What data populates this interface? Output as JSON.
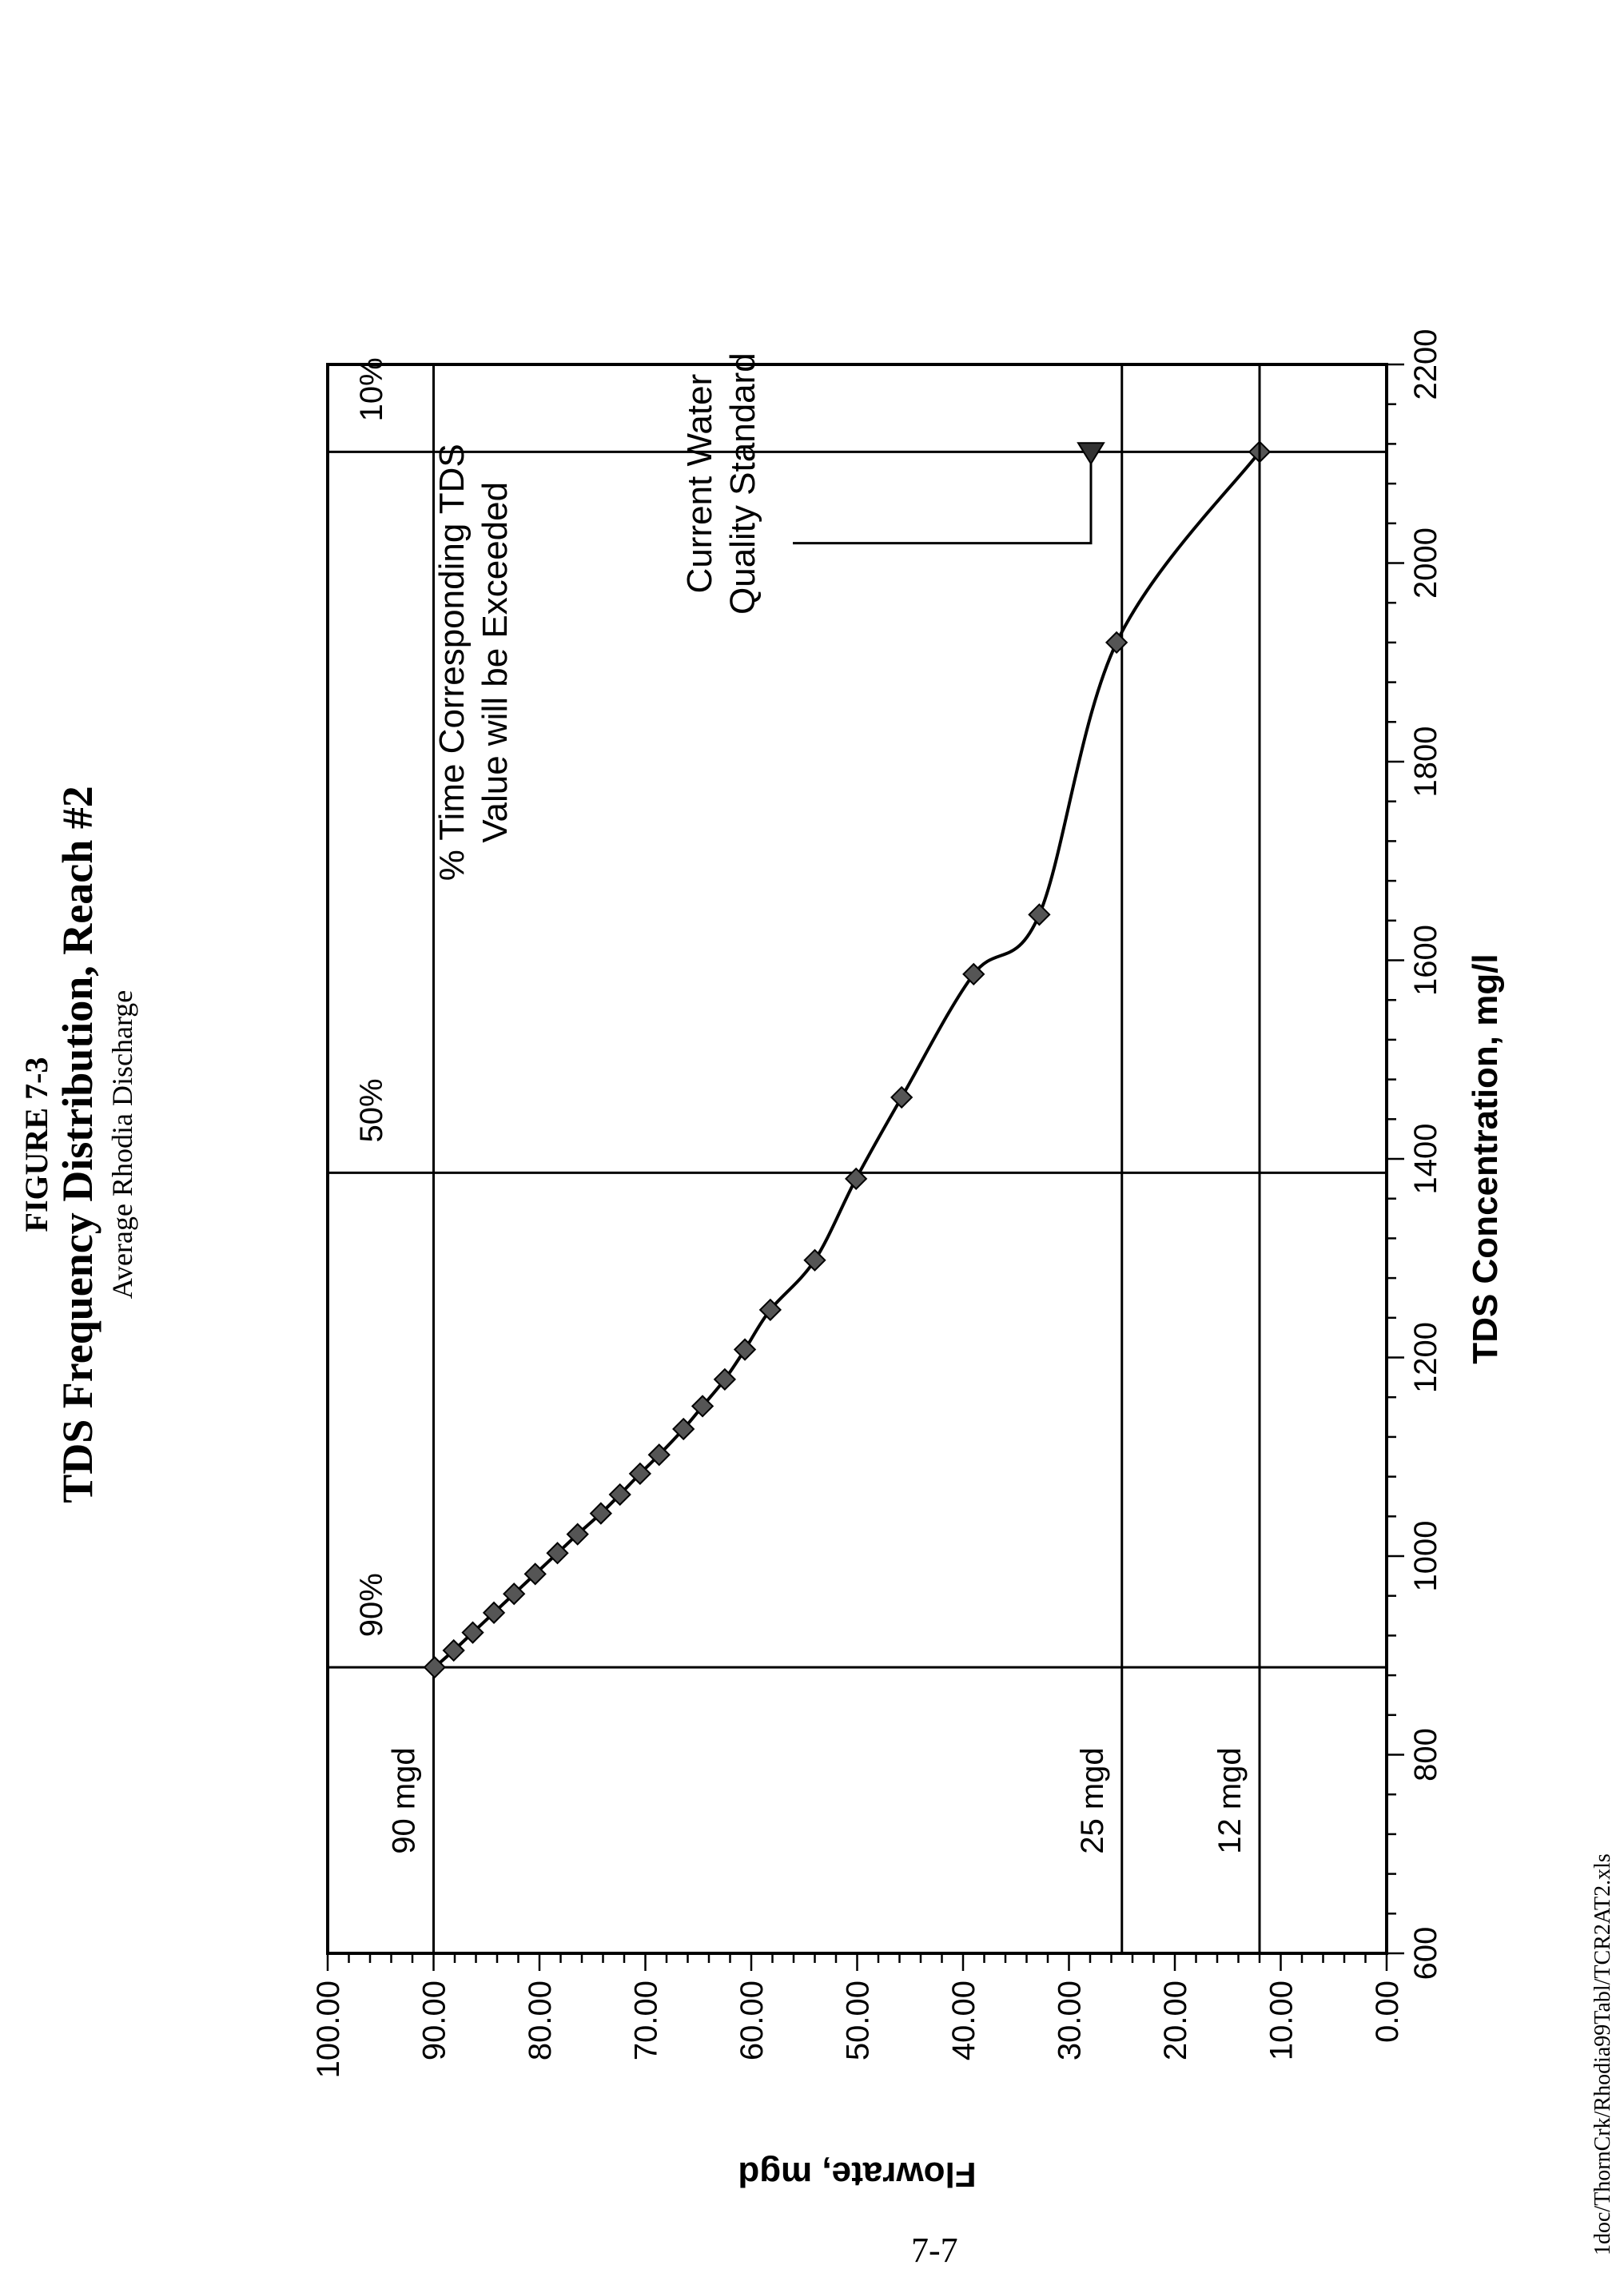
{
  "figure": {
    "label": "FIGURE 7-3",
    "title": "TDS Frequency Distribution, Reach #2",
    "subtitle": "Average Rhodia Discharge"
  },
  "footer": {
    "file_path": "1doc/ThornCrk/Rhodia99Tabl/TCR2AT2.xls",
    "page_number": "7-7"
  },
  "chart_data": {
    "type": "line",
    "xlabel": "TDS Concentration, mg/l",
    "ylabel": "Flowrate, mgd",
    "xlim": [
      600,
      2200
    ],
    "ylim": [
      0,
      100
    ],
    "x_ticks": [
      "600",
      "800",
      "1000",
      "1200",
      "1400",
      "1600",
      "1800",
      "2000",
      "2200"
    ],
    "y_ticks": [
      "0.00",
      "10.00",
      "20.00",
      "30.00",
      "40.00",
      "50.00",
      "60.00",
      "70.00",
      "80.00",
      "90.00",
      "100.00"
    ],
    "grid": false,
    "series": [
      {
        "x": [
          888,
          905,
          923,
          943,
          962,
          982,
          1003,
          1022,
          1043,
          1062,
          1083,
          1102,
          1128,
          1151,
          1178,
          1208,
          1248,
          1298,
          1380,
          1462,
          1586,
          1646,
          1920,
          2112
        ],
        "y": [
          89.9,
          88.1,
          86.3,
          84.3,
          82.4,
          80.4,
          78.3,
          76.4,
          74.2,
          72.4,
          70.5,
          68.7,
          66.4,
          64.6,
          62.5,
          60.6,
          58.2,
          54.0,
          50.1,
          45.8,
          39.0,
          32.8,
          25.5,
          12.0
        ]
      }
    ],
    "reference_lines_flow": [
      {
        "y": 90,
        "label": "90 mgd"
      },
      {
        "y": 25,
        "label": "25 mgd"
      },
      {
        "y": 12,
        "label": "12 mgd"
      }
    ],
    "exceedance_lines": [
      {
        "x": 888,
        "label": "90%"
      },
      {
        "x": 1386,
        "label": "50%"
      },
      {
        "x": 2112,
        "label": "10%"
      }
    ],
    "annotations": {
      "exceedance_note": [
        "% Time Corresponding TDS",
        "Value will be Exceeded"
      ],
      "standard_note": [
        "Current Water",
        "Quality Standard"
      ],
      "standard_value": 2100
    }
  }
}
